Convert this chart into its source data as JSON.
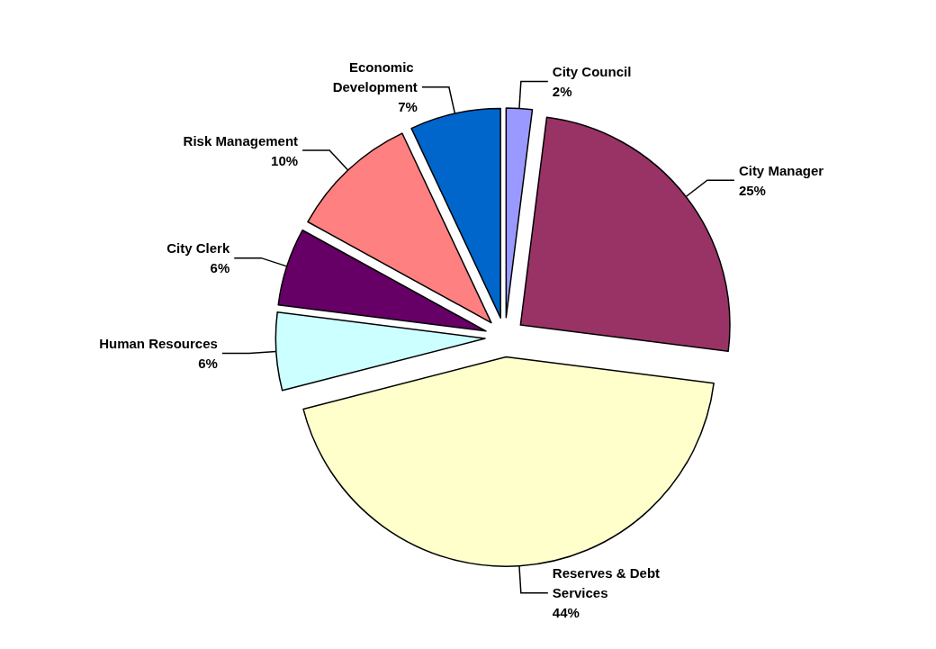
{
  "chart_data": {
    "type": "pie",
    "categories": [
      "City Council",
      "City Manager",
      "Reserves & Debt Services",
      "Human Resources",
      "City Clerk",
      "Risk Management",
      "Economic Development"
    ],
    "values": [
      2,
      25,
      44,
      6,
      6,
      10,
      7
    ],
    "value_labels": [
      "2%",
      "25%",
      "44%",
      "6%",
      "6%",
      "10%",
      "7%"
    ],
    "colors": [
      "#9999ff",
      "#993366",
      "#ffffcc",
      "#ccffff",
      "#660066",
      "#ff8080",
      "#0066cc"
    ],
    "legend": false
  }
}
